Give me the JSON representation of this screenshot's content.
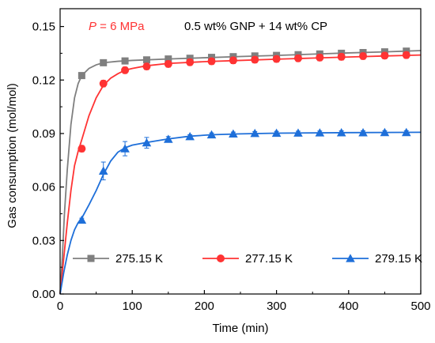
{
  "chart_data": {
    "type": "line",
    "title": "",
    "xlabel": "Time (min)",
    "ylabel": "Gas consumption (mol/mol)",
    "xlim": [
      0,
      500
    ],
    "ylim": [
      0,
      0.16
    ],
    "xticks": [
      0,
      100,
      200,
      300,
      400,
      500
    ],
    "xtick_labels": [
      "0",
      "100",
      "200",
      "300",
      "400",
      "500"
    ],
    "yticks": [
      0,
      0.03,
      0.06,
      0.09,
      0.12,
      0.15
    ],
    "ytick_labels": [
      "0.00",
      "0.03",
      "0.06",
      "0.09",
      "0.12",
      "0.15"
    ],
    "grid": false,
    "legend_position": "bottom",
    "annotations": {
      "pressure_italic": "P",
      "pressure_value": " = 6 MPa",
      "composition": "0.5 wt% GNP + 14 wt% CP"
    },
    "series": [
      {
        "name": "275.15 K",
        "color": "#7f7f7f",
        "marker": "square",
        "curve": [
          [
            0,
            0
          ],
          [
            3,
            0.02
          ],
          [
            6,
            0.045
          ],
          [
            10,
            0.07
          ],
          [
            15,
            0.095
          ],
          [
            20,
            0.11
          ],
          [
            25,
            0.118
          ],
          [
            30,
            0.1225
          ],
          [
            40,
            0.1265
          ],
          [
            50,
            0.1285
          ],
          [
            60,
            0.1297
          ],
          [
            80,
            0.1305
          ],
          [
            100,
            0.131
          ],
          [
            150,
            0.1318
          ],
          [
            200,
            0.1325
          ],
          [
            250,
            0.1332
          ],
          [
            300,
            0.1338
          ],
          [
            350,
            0.1345
          ],
          [
            400,
            0.1352
          ],
          [
            450,
            0.1358
          ],
          [
            500,
            0.1365
          ]
        ],
        "markers": [
          [
            30,
            0.1225
          ],
          [
            60,
            0.1297
          ],
          [
            90,
            0.1307
          ],
          [
            120,
            0.1313
          ],
          [
            150,
            0.1318
          ],
          [
            180,
            0.1322
          ],
          [
            210,
            0.1327
          ],
          [
            240,
            0.1331
          ],
          [
            270,
            0.1335
          ],
          [
            300,
            0.1338
          ],
          [
            330,
            0.1342
          ],
          [
            360,
            0.1346
          ],
          [
            390,
            0.135
          ],
          [
            420,
            0.1354
          ],
          [
            450,
            0.1358
          ],
          [
            480,
            0.1362
          ]
        ],
        "error": 0.001
      },
      {
        "name": "277.15 K",
        "color": "#ff3333",
        "marker": "circle",
        "curve": [
          [
            0,
            0
          ],
          [
            5,
            0.02
          ],
          [
            10,
            0.04
          ],
          [
            15,
            0.058
          ],
          [
            20,
            0.072
          ],
          [
            25,
            0.08
          ],
          [
            30,
            0.0865
          ],
          [
            40,
            0.1
          ],
          [
            50,
            0.11
          ],
          [
            60,
            0.117
          ],
          [
            70,
            0.121
          ],
          [
            80,
            0.1235
          ],
          [
            90,
            0.1255
          ],
          [
            100,
            0.1265
          ],
          [
            120,
            0.128
          ],
          [
            150,
            0.1293
          ],
          [
            200,
            0.1303
          ],
          [
            250,
            0.131
          ],
          [
            300,
            0.1317
          ],
          [
            350,
            0.1323
          ],
          [
            400,
            0.1329
          ],
          [
            450,
            0.1335
          ],
          [
            500,
            0.134
          ]
        ],
        "markers": [
          [
            30,
            0.0815
          ],
          [
            60,
            0.118
          ],
          [
            90,
            0.1255
          ],
          [
            120,
            0.1276
          ],
          [
            150,
            0.129
          ],
          [
            180,
            0.13
          ],
          [
            210,
            0.1305
          ],
          [
            240,
            0.131
          ],
          [
            270,
            0.1314
          ],
          [
            300,
            0.1318
          ],
          [
            330,
            0.1322
          ],
          [
            360,
            0.1326
          ],
          [
            390,
            0.133
          ],
          [
            420,
            0.1334
          ],
          [
            450,
            0.1337
          ],
          [
            480,
            0.134
          ]
        ],
        "error": 0.0018
      },
      {
        "name": "279.15 K",
        "color": "#1e6fd9",
        "marker": "triangle",
        "curve": [
          [
            0,
            0
          ],
          [
            5,
            0.012
          ],
          [
            10,
            0.022
          ],
          [
            15,
            0.03
          ],
          [
            20,
            0.036
          ],
          [
            25,
            0.04
          ],
          [
            30,
            0.0425
          ],
          [
            40,
            0.05
          ],
          [
            50,
            0.058
          ],
          [
            60,
            0.067
          ],
          [
            70,
            0.0745
          ],
          [
            80,
            0.0795
          ],
          [
            90,
            0.082
          ],
          [
            100,
            0.0835
          ],
          [
            120,
            0.085
          ],
          [
            150,
            0.087
          ],
          [
            180,
            0.0885
          ],
          [
            210,
            0.0893
          ],
          [
            250,
            0.0898
          ],
          [
            300,
            0.0902
          ],
          [
            400,
            0.0905
          ],
          [
            500,
            0.0907
          ]
        ],
        "markers": [
          [
            30,
            0.0415
          ],
          [
            60,
            0.069
          ],
          [
            90,
            0.0815
          ],
          [
            120,
            0.0848
          ],
          [
            150,
            0.0868
          ],
          [
            180,
            0.0883
          ],
          [
            210,
            0.0893
          ],
          [
            240,
            0.0898
          ],
          [
            270,
            0.0901
          ],
          [
            300,
            0.0902
          ],
          [
            330,
            0.0903
          ],
          [
            360,
            0.0904
          ],
          [
            390,
            0.0905
          ],
          [
            420,
            0.0905
          ],
          [
            450,
            0.0906
          ],
          [
            480,
            0.0906
          ]
        ],
        "errors": [
          0.001,
          0.005,
          0.004,
          0.003,
          0.0015,
          0.001,
          0.001,
          0.001,
          0.001,
          0.001,
          0.001,
          0.001,
          0.001,
          0.001,
          0.001,
          0.001
        ]
      }
    ]
  }
}
